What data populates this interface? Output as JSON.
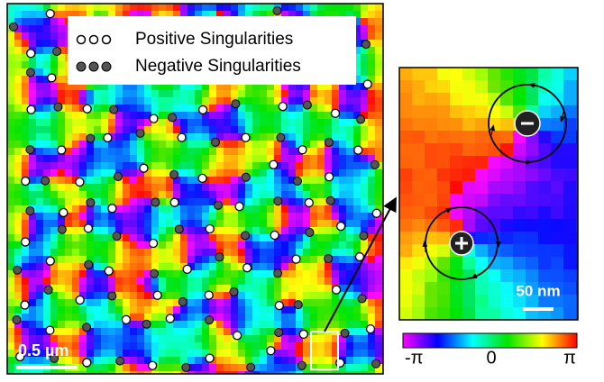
{
  "legend": {
    "items": [
      {
        "label": "Positive Singularities"
      },
      {
        "label": "Negative Singularities"
      }
    ]
  },
  "scale_bars": {
    "main": "0.5 µm",
    "inset": "50 nm"
  },
  "colorbar": {
    "labels": [
      "-π",
      "0",
      "π"
    ]
  }
}
